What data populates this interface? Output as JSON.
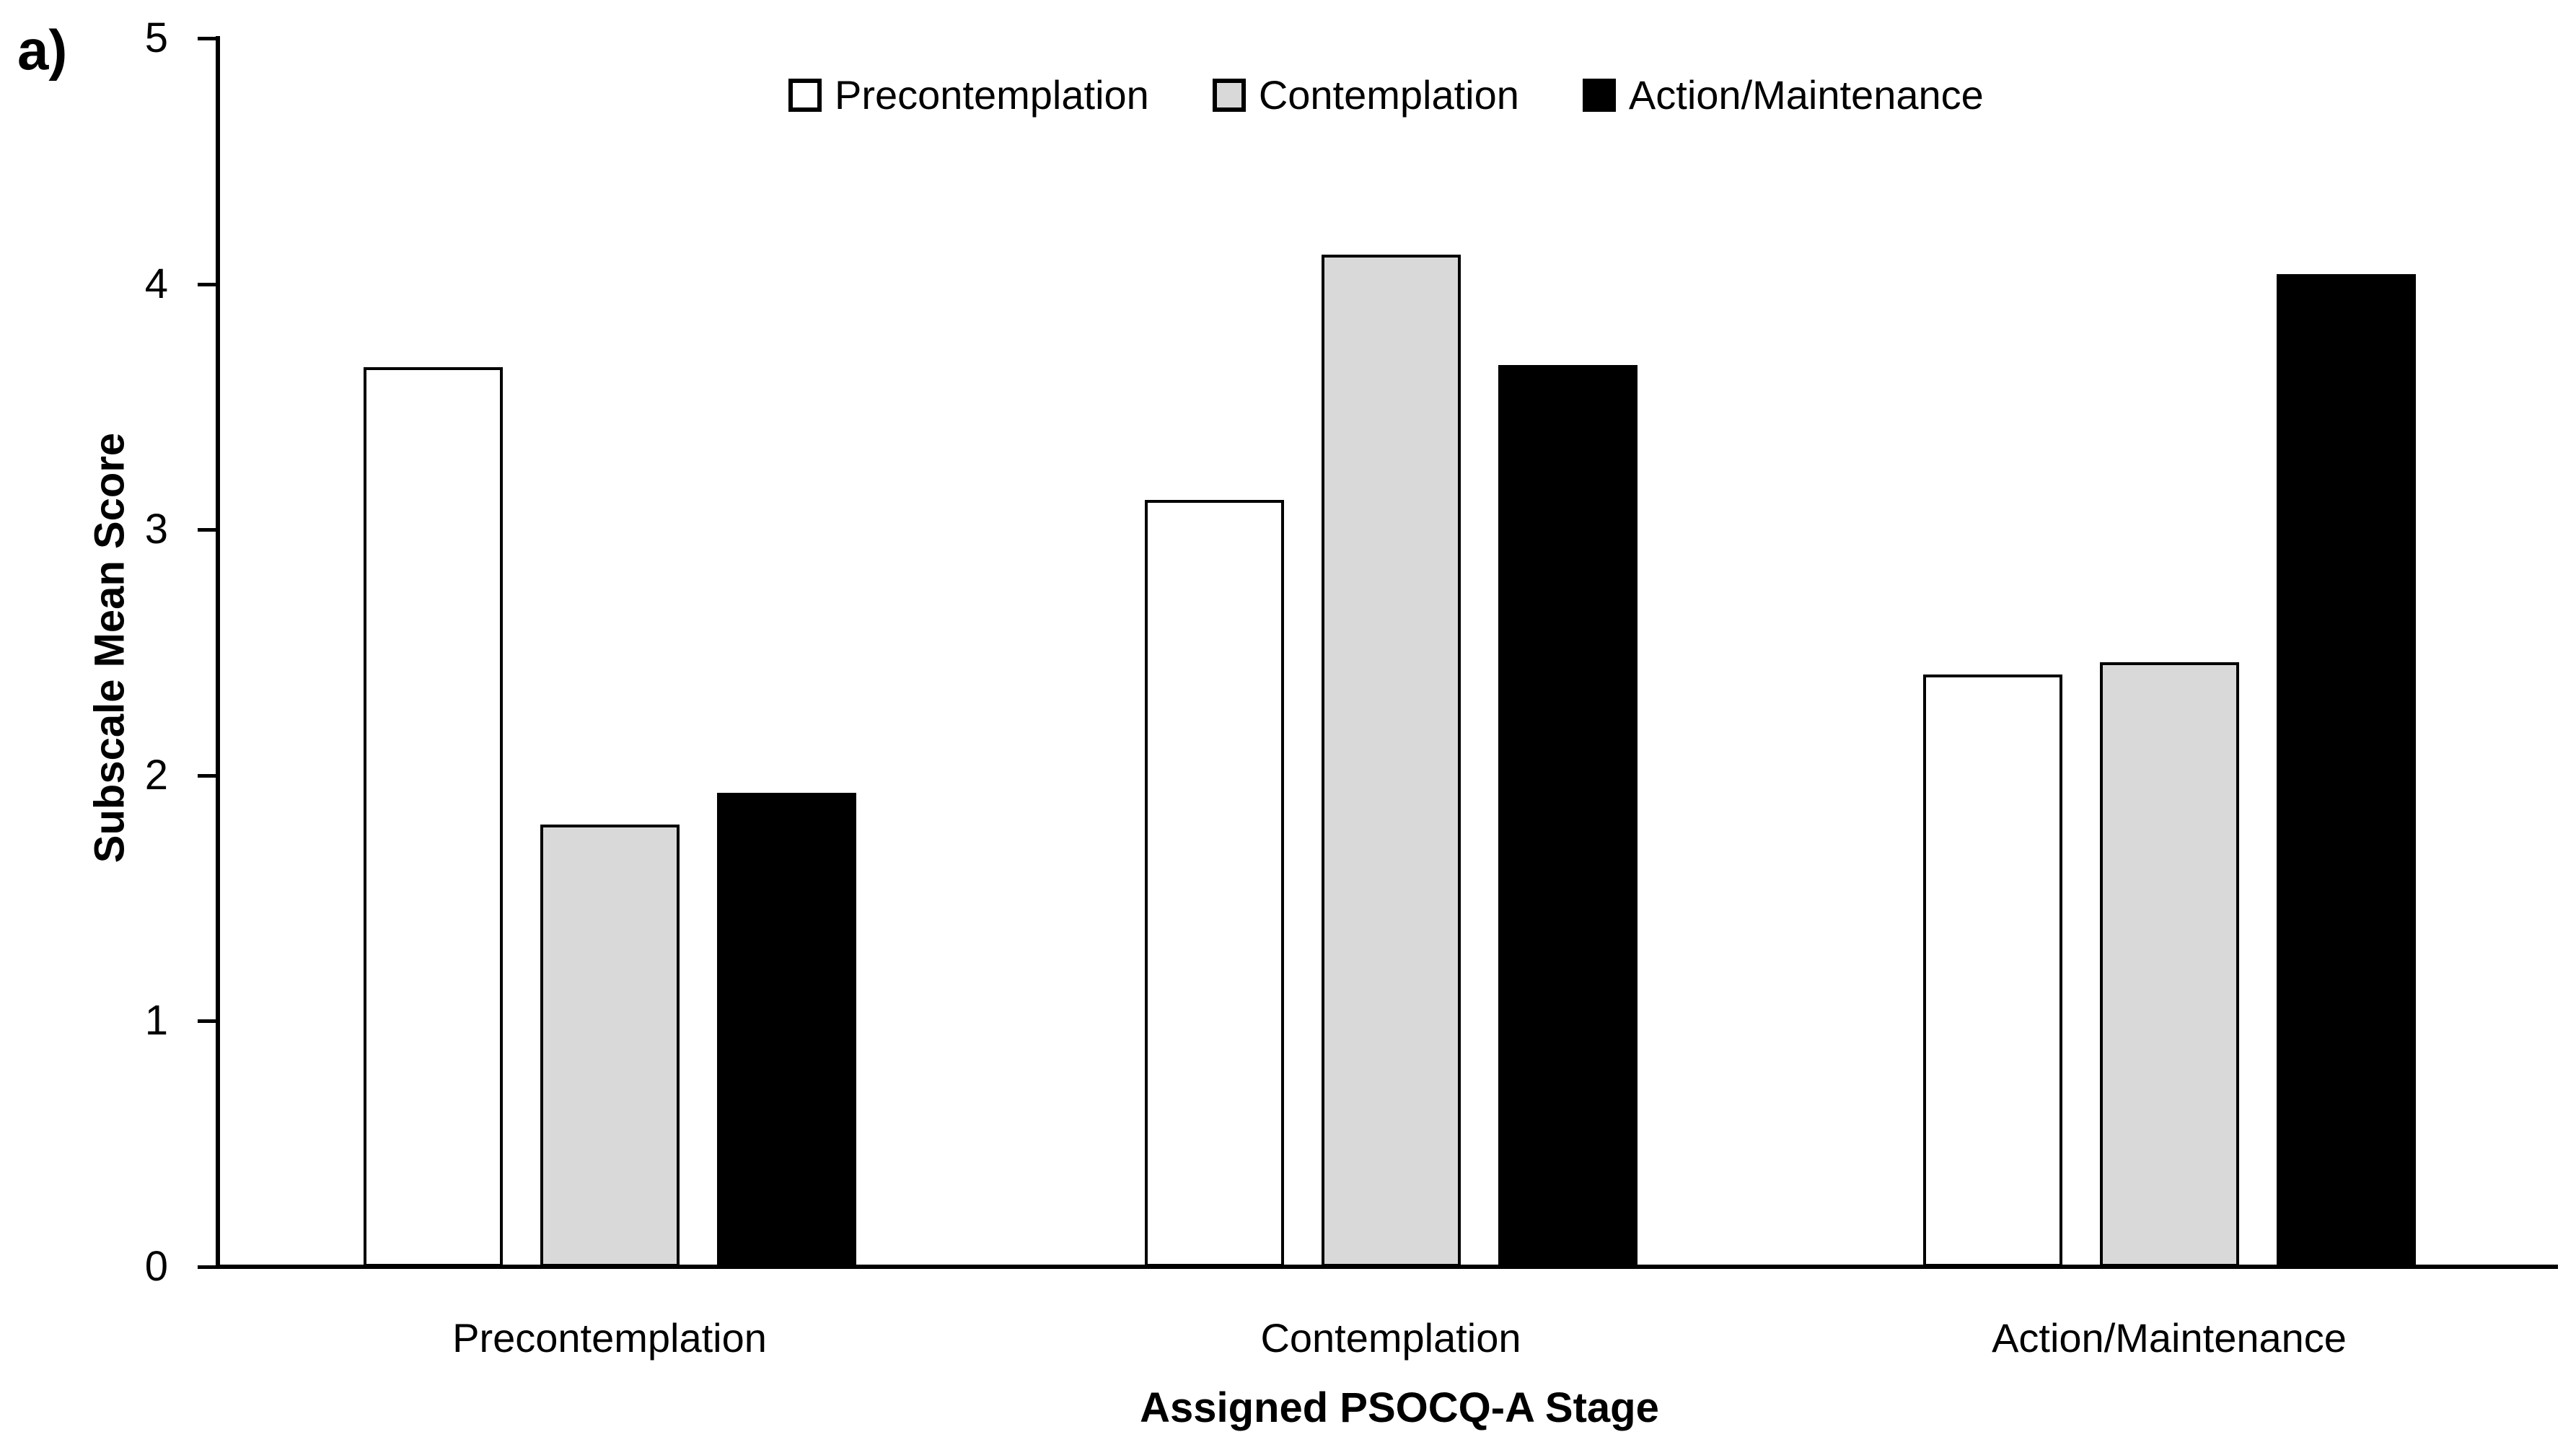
{
  "figure": {
    "panel_label": "a)",
    "background": "#ffffff",
    "text_color": "#000000"
  },
  "chart_data": {
    "type": "bar",
    "title": "",
    "xlabel": "Assigned PSOCQ-A Stage",
    "ylabel": "Subscale Mean Score",
    "categories": [
      "Precontemplation",
      "Contemplation",
      "Action/Maintenance"
    ],
    "series": [
      {
        "name": "Precontemplation",
        "fill": "#ffffff",
        "border": "#000000",
        "values": [
          3.66,
          3.12,
          2.41
        ]
      },
      {
        "name": "Contemplation",
        "fill": "#d9d9d9",
        "border": "#000000",
        "values": [
          1.8,
          4.12,
          2.46
        ]
      },
      {
        "name": "Action/Maintenance",
        "fill": "#000000",
        "border": "#000000",
        "values": [
          1.93,
          3.67,
          4.04
        ]
      }
    ],
    "ylim": [
      0,
      5
    ],
    "yticks": [
      "0",
      "1",
      "2",
      "3",
      "4",
      "5"
    ],
    "grid": false,
    "legend_position": "top-center"
  }
}
